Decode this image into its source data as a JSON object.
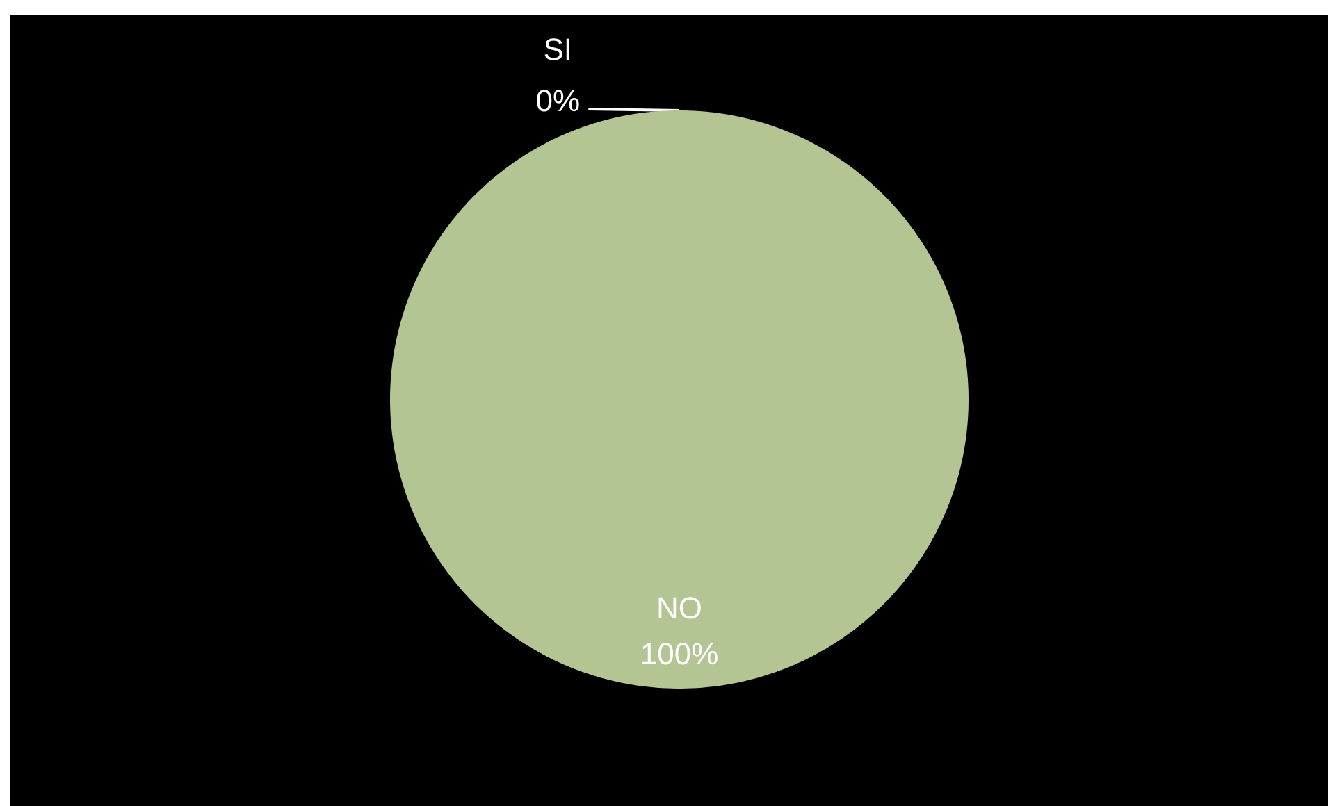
{
  "chart_data": {
    "type": "pie",
    "categories": [
      "SI",
      "NO"
    ],
    "values": [
      0,
      100
    ],
    "colors": [
      null,
      "#b3c592"
    ],
    "value_labels": [
      "0%",
      "100%"
    ]
  }
}
